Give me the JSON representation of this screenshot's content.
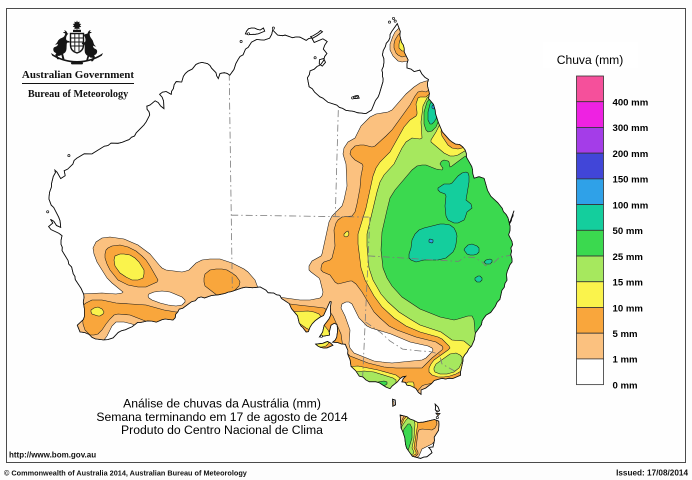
{
  "logo": {
    "line1": "Australian Government",
    "line2": "Bureau of Meteorology"
  },
  "legend": {
    "title": "Chuva (mm)",
    "entries": [
      {
        "color": "#F5509B",
        "label": "400 mm"
      },
      {
        "color": "#EE22E2",
        "label": "300 mm"
      },
      {
        "color": "#A43DE8",
        "label": "200 mm"
      },
      {
        "color": "#4146D8",
        "label": "150 mm"
      },
      {
        "color": "#2FA1E8",
        "label": "100 mm"
      },
      {
        "color": "#14CE9D",
        "label": "50 mm"
      },
      {
        "color": "#3BD94F",
        "label": "25 mm"
      },
      {
        "color": "#A6E85E",
        "label": "15 mm"
      },
      {
        "color": "#FAF34C",
        "label": "10 mm"
      },
      {
        "color": "#F9A63C",
        "label": "5 mm"
      },
      {
        "color": "#FBC17F",
        "label": "1 mm"
      },
      {
        "color": "#FFFFFF",
        "label": "0 mm"
      }
    ]
  },
  "map": {
    "level_colors": {
      "1": "#FBC17F",
      "5": "#F9A63C",
      "10": "#FAF34C",
      "15": "#A6E85E",
      "25": "#3BD94F",
      "50": "#14CE9D",
      "100": "#2FA1E8"
    }
  },
  "caption": {
    "line1": "Análise de chuvas da Austrália (mm)",
    "line2": "Semana terminando em 17 de agosto de 2014",
    "line3": "Produto do Centro Nacional de Clima"
  },
  "footer": {
    "url": "http://www.bom.gov.au",
    "copyright": "© Commonwealth of Australia 2014, Australian Bureau of Meteorology",
    "issued": "Issued: 17/08/2014"
  }
}
